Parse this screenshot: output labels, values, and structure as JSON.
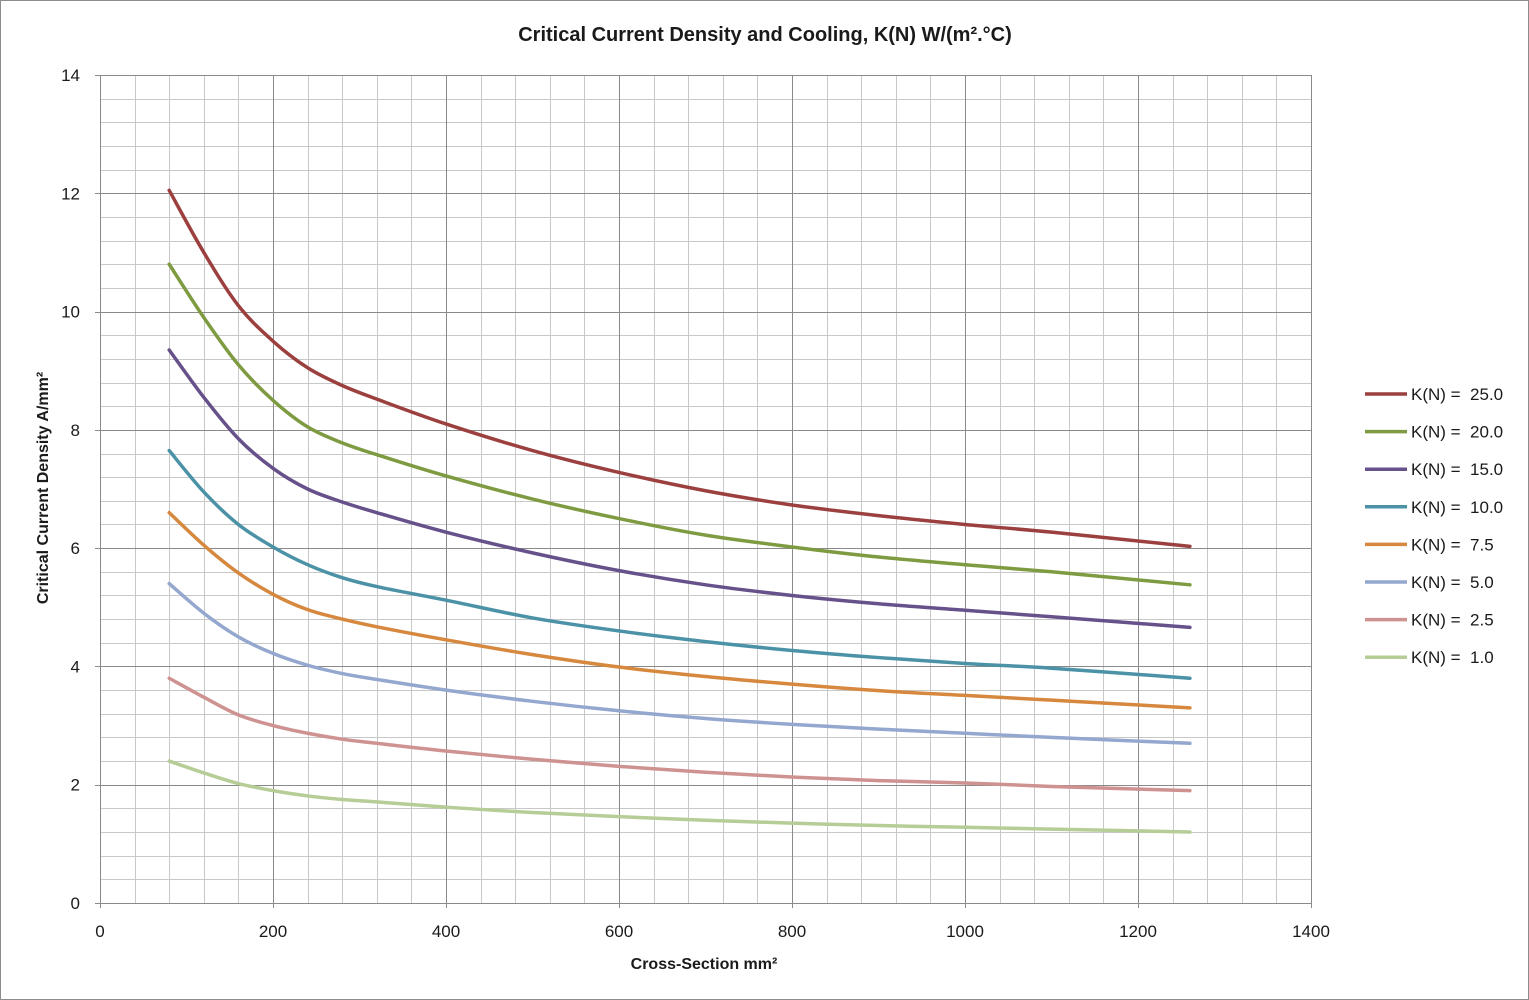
{
  "chart_data": {
    "type": "line",
    "title": "Critical Current Density and Cooling,  K(N) W/(m².°C)",
    "xlabel": "Cross-Section mm²",
    "ylabel": "Critical Current Density A/mm²",
    "xlim": [
      0,
      1400
    ],
    "ylim": [
      0,
      14
    ],
    "x_major_step": 200,
    "x_minor_step": 40,
    "y_major_step": 2,
    "y_minor_step": 0.4,
    "x_tick_labels": [
      "0",
      "200",
      "400",
      "600",
      "800",
      "1000",
      "1200",
      "1400"
    ],
    "y_tick_labels": [
      "0",
      "2",
      "4",
      "6",
      "8",
      "10",
      "12",
      "14"
    ],
    "grid": true,
    "legend_position": "right",
    "x": [
      80,
      120,
      160,
      200,
      240,
      280,
      320,
      400,
      500,
      600,
      700,
      800,
      900,
      1000,
      1100,
      1260
    ],
    "series": [
      {
        "name": "K(N) =  25.0",
        "color": "#9b403e",
        "values": [
          12.05,
          11.0,
          10.1,
          9.5,
          9.05,
          8.75,
          8.52,
          8.1,
          7.65,
          7.28,
          6.97,
          6.73,
          6.55,
          6.4,
          6.27,
          6.03
        ]
      },
      {
        "name": "K(N) =  20.0",
        "color": "#7e9b42",
        "values": [
          10.8,
          9.9,
          9.1,
          8.5,
          8.05,
          7.78,
          7.58,
          7.22,
          6.83,
          6.5,
          6.22,
          6.02,
          5.85,
          5.72,
          5.6,
          5.38
        ]
      },
      {
        "name": "K(N) =  15.0",
        "color": "#67518a",
        "values": [
          9.35,
          8.55,
          7.85,
          7.35,
          7.0,
          6.78,
          6.6,
          6.27,
          5.92,
          5.62,
          5.38,
          5.2,
          5.06,
          4.95,
          4.84,
          4.66
        ]
      },
      {
        "name": "K(N) =  10.0",
        "color": "#4b92a7",
        "values": [
          7.65,
          6.95,
          6.4,
          6.02,
          5.72,
          5.5,
          5.35,
          5.12,
          4.82,
          4.6,
          4.42,
          4.27,
          4.15,
          4.05,
          3.97,
          3.8
        ]
      },
      {
        "name": "K(N) =  7.5",
        "color": "#d6883e",
        "values": [
          6.6,
          6.05,
          5.58,
          5.22,
          4.96,
          4.8,
          4.67,
          4.45,
          4.2,
          3.99,
          3.83,
          3.7,
          3.59,
          3.51,
          3.43,
          3.3
        ]
      },
      {
        "name": "K(N) =  5.0",
        "color": "#94a7cf",
        "values": [
          5.4,
          4.9,
          4.5,
          4.22,
          4.02,
          3.88,
          3.78,
          3.6,
          3.41,
          3.25,
          3.12,
          3.02,
          2.94,
          2.87,
          2.8,
          2.7
        ]
      },
      {
        "name": "K(N) =  2.5",
        "color": "#ce9291",
        "values": [
          3.8,
          3.48,
          3.18,
          3.0,
          2.87,
          2.77,
          2.7,
          2.57,
          2.43,
          2.31,
          2.21,
          2.13,
          2.07,
          2.03,
          1.97,
          1.9
        ]
      },
      {
        "name": "K(N) =  1.0",
        "color": "#b6cd97",
        "values": [
          2.4,
          2.2,
          2.02,
          1.9,
          1.81,
          1.75,
          1.71,
          1.62,
          1.53,
          1.46,
          1.4,
          1.35,
          1.31,
          1.28,
          1.25,
          1.2
        ]
      }
    ]
  }
}
